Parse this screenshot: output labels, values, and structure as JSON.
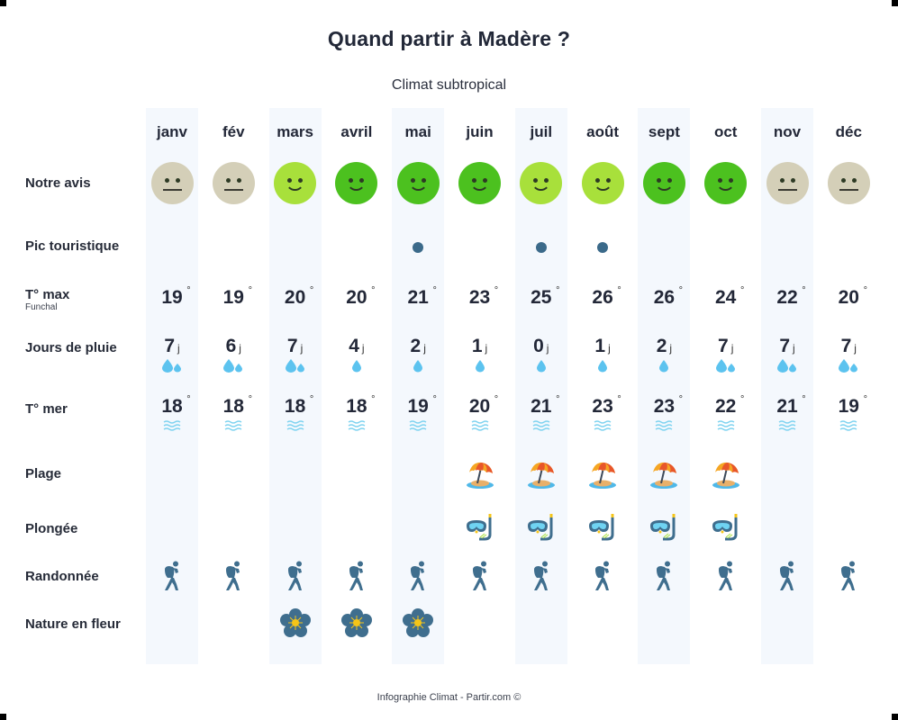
{
  "header": {
    "title": "Quand partir à Madère ?",
    "subtitle": "Climat subtropical"
  },
  "colors": {
    "face_neutral": "#d4cfb8",
    "face_light_green": "#a8e03b",
    "face_green": "#4cc11f",
    "band": "#f4f8fd",
    "dot": "#3b6a8a",
    "drop": "#5cc3ef",
    "wave": "#7fd3f0",
    "icon_blue": "#3f6e8e"
  },
  "rows": {
    "rating": "Notre avis",
    "peak": "Pic touristique",
    "tmax": "T° max",
    "tmax_sub": "Funchal",
    "rain": "Jours de pluie",
    "sea": "T° mer",
    "beach": "Plage",
    "diving": "Plongée",
    "hiking": "Randonnée",
    "flowers": "Nature en fleur"
  },
  "units": {
    "degree": "°",
    "day": "j"
  },
  "months": [
    {
      "name": "janv",
      "rating": "neutral",
      "peak": false,
      "tmax": "19",
      "rain": "7",
      "rain_drops": 2,
      "sea": "18",
      "beach": false,
      "diving": false,
      "hiking": true,
      "flowers": false
    },
    {
      "name": "fév",
      "rating": "neutral",
      "peak": false,
      "tmax": "19",
      "rain": "6",
      "rain_drops": 2,
      "sea": "18",
      "beach": false,
      "diving": false,
      "hiking": true,
      "flowers": false
    },
    {
      "name": "mars",
      "rating": "good",
      "peak": false,
      "tmax": "20",
      "rain": "7",
      "rain_drops": 2,
      "sea": "18",
      "beach": false,
      "diving": false,
      "hiking": true,
      "flowers": true
    },
    {
      "name": "avril",
      "rating": "great",
      "peak": false,
      "tmax": "20",
      "rain": "4",
      "rain_drops": 1,
      "sea": "18",
      "beach": false,
      "diving": false,
      "hiking": true,
      "flowers": true
    },
    {
      "name": "mai",
      "rating": "great",
      "peak": true,
      "tmax": "21",
      "rain": "2",
      "rain_drops": 1,
      "sea": "19",
      "beach": false,
      "diving": false,
      "hiking": true,
      "flowers": true
    },
    {
      "name": "juin",
      "rating": "great",
      "peak": false,
      "tmax": "23",
      "rain": "1",
      "rain_drops": 1,
      "sea": "20",
      "beach": true,
      "diving": true,
      "hiking": true,
      "flowers": false
    },
    {
      "name": "juil",
      "rating": "good",
      "peak": true,
      "tmax": "25",
      "rain": "0",
      "rain_drops": 1,
      "sea": "21",
      "beach": true,
      "diving": true,
      "hiking": true,
      "flowers": false
    },
    {
      "name": "août",
      "rating": "good",
      "peak": true,
      "tmax": "26",
      "rain": "1",
      "rain_drops": 1,
      "sea": "23",
      "beach": true,
      "diving": true,
      "hiking": true,
      "flowers": false
    },
    {
      "name": "sept",
      "rating": "great",
      "peak": false,
      "tmax": "26",
      "rain": "2",
      "rain_drops": 1,
      "sea": "23",
      "beach": true,
      "diving": true,
      "hiking": true,
      "flowers": false
    },
    {
      "name": "oct",
      "rating": "great",
      "peak": false,
      "tmax": "24",
      "rain": "7",
      "rain_drops": 2,
      "sea": "22",
      "beach": true,
      "diving": true,
      "hiking": true,
      "flowers": false
    },
    {
      "name": "nov",
      "rating": "neutral",
      "peak": false,
      "tmax": "22",
      "rain": "7",
      "rain_drops": 2,
      "sea": "21",
      "beach": false,
      "diving": false,
      "hiking": true,
      "flowers": false
    },
    {
      "name": "déc",
      "rating": "neutral",
      "peak": false,
      "tmax": "20",
      "rain": "7",
      "rain_drops": 2,
      "sea": "19",
      "beach": false,
      "diving": false,
      "hiking": true,
      "flowers": false
    }
  ],
  "footer": "Infographie Climat - Partir.com ©"
}
